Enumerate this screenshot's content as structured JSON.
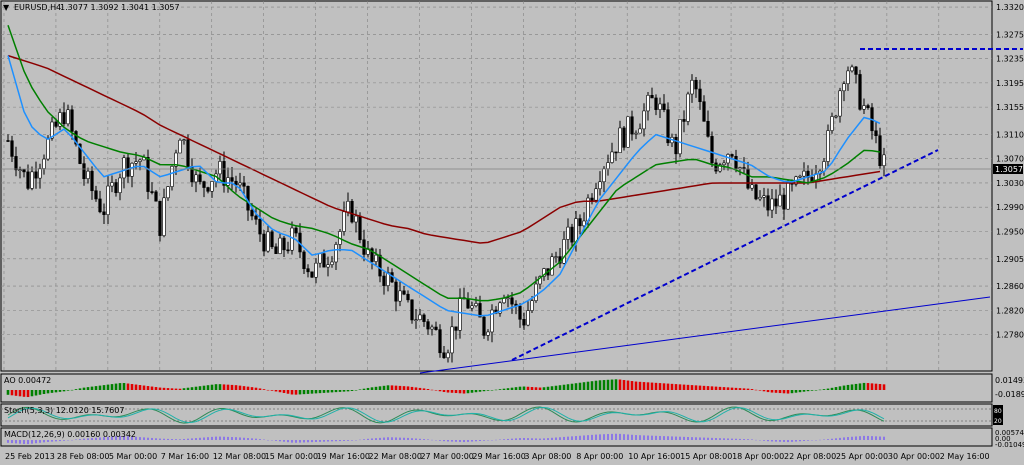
{
  "chart_data": {
    "type": "candlestick",
    "symbol_label": "EURUSD,H4",
    "ohlc_label": "1.3077 1.3092 1.3041 1.3057",
    "current_price": "1.3057",
    "ylim": [
      1.2725,
      1.3325
    ],
    "price_ticks": [
      "1.3320",
      "1.3275",
      "1.3235",
      "1.3195",
      "1.3155",
      "1.3110",
      "1.3070",
      "1.3030",
      "1.2990",
      "1.2950",
      "1.2905",
      "1.2860",
      "1.2820",
      "1.2780"
    ],
    "x_ticks": [
      "25 Feb 2013",
      "28 Feb 08:00",
      "5 Mar 00:00",
      "7 Mar 16:00",
      "12 Mar 08:00",
      "15 Mar 00:00",
      "19 Mar 16:00",
      "22 Mar 08:00",
      "27 Mar 00:00",
      "29 Mar 16:00",
      "3 Apr 08:00",
      "8 Apr 00:00",
      "10 Apr 16:00",
      "15 Apr 08:00",
      "18 Apr 00:00",
      "22 Apr 08:00",
      "25 Apr 00:00",
      "30 Apr 00:00",
      "2 May 16:00"
    ],
    "close_series": [
      1.31,
      1.303,
      1.309,
      1.315,
      1.304,
      1.2985,
      1.306,
      1.307,
      1.296,
      1.312,
      1.302,
      1.305,
      1.303,
      1.296,
      1.291,
      1.294,
      1.288,
      1.292,
      1.299,
      1.29,
      1.287,
      1.282,
      1.28,
      1.276,
      1.284,
      1.279,
      1.286,
      1.28,
      1.287,
      1.292,
      1.296,
      1.305,
      1.31,
      1.313,
      1.317,
      1.308,
      1.32,
      1.306,
      1.309,
      1.301,
      1.299,
      1.301,
      1.304,
      1.309,
      1.323,
      1.315,
      1.3057
    ],
    "ma_fast": [
      1.324,
      1.313,
      1.31,
      1.312,
      1.308,
      1.304,
      1.305,
      1.306,
      1.304,
      1.305,
      1.306,
      1.303,
      1.303,
      1.298,
      1.295,
      1.294,
      1.291,
      1.292,
      1.292,
      1.29,
      1.288,
      1.286,
      1.284,
      1.282,
      1.2815,
      1.281,
      1.282,
      1.283,
      1.285,
      1.288,
      1.294,
      1.3,
      1.304,
      1.308,
      1.311,
      1.31,
      1.309,
      1.308,
      1.307,
      1.306,
      1.304,
      1.303,
      1.304,
      1.305,
      1.31,
      1.314,
      1.3125
    ],
    "ma_mid": [
      1.329,
      1.32,
      1.315,
      1.312,
      1.31,
      1.309,
      1.308,
      1.3075,
      1.306,
      1.306,
      1.305,
      1.304,
      1.301,
      1.299,
      1.297,
      1.296,
      1.2955,
      1.2945,
      1.293,
      1.292,
      1.29,
      1.288,
      1.286,
      1.284,
      1.284,
      1.2835,
      1.284,
      1.285,
      1.2875,
      1.29,
      1.294,
      1.298,
      1.302,
      1.304,
      1.306,
      1.3065,
      1.307,
      1.306,
      1.3055,
      1.304,
      1.304,
      1.3035,
      1.303,
      1.304,
      1.306,
      1.3085,
      1.308
    ],
    "ma_slow": [
      1.324,
      1.323,
      1.322,
      1.3205,
      1.319,
      1.3175,
      1.316,
      1.3145,
      1.3125,
      1.311,
      1.3095,
      1.308,
      1.3065,
      1.305,
      1.3035,
      1.302,
      1.3005,
      1.299,
      1.298,
      1.297,
      1.296,
      1.2955,
      1.2945,
      1.294,
      1.2935,
      1.293,
      1.294,
      1.295,
      1.297,
      1.299,
      1.3,
      1.3,
      1.3005,
      1.301,
      1.3015,
      1.302,
      1.3025,
      1.303,
      1.303,
      1.303,
      1.303,
      1.303,
      1.303,
      1.3035,
      1.304,
      1.3045,
      1.305
    ],
    "indicators": [
      {
        "label": "AO 0.00472",
        "ticks": [
          "0.01493",
          "-0.01891"
        ],
        "values": [
          -0.004,
          -0.006,
          -0.003,
          -0.001,
          0.002,
          0.004,
          0.006,
          0.004,
          0.002,
          0.001,
          0.003,
          0.005,
          0.004,
          0.002,
          -0.001,
          -0.004,
          -0.003,
          -0.002,
          -0.001,
          0.002,
          0.004,
          0.003,
          0.001,
          -0.002,
          -0.003,
          -0.001,
          0.001,
          0.003,
          0.002,
          0.004,
          0.006,
          0.008,
          0.009,
          0.007,
          0.006,
          0.005,
          0.004,
          0.003,
          0.002,
          0.001,
          -0.002,
          -0.003,
          -0.001,
          0.001,
          0.004,
          0.006,
          0.00472
        ]
      },
      {
        "label": "Stoch(5,3,3) 12.0120 15.7607",
        "ticks": [
          "80",
          "20"
        ]
      },
      {
        "label": "MACD(12,26,9) 0.00160 0.00342",
        "ticks": [
          "0.00574",
          "0.00",
          "-0.01049"
        ]
      }
    ],
    "colors": {
      "candle": "#000000",
      "ma_fast": "#1e90ff",
      "ma_mid": "#008000",
      "ma_slow": "#8b0000",
      "trend": "#0000cd",
      "macd": "#8c78e6",
      "ao_up": "#008000",
      "ao_down": "#e00000"
    }
  }
}
